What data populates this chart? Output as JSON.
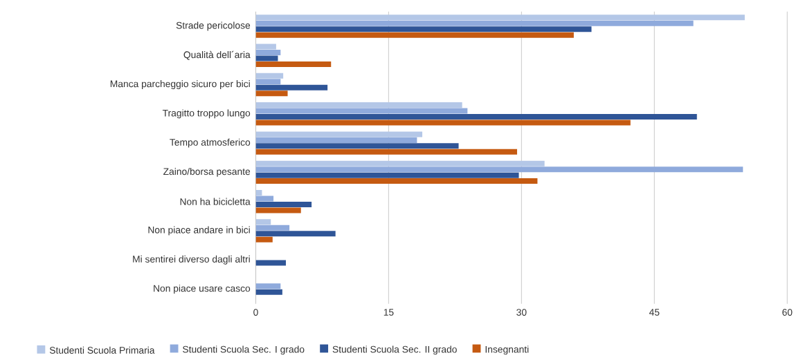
{
  "chart_data": {
    "type": "bar",
    "orientation": "horizontal",
    "categories": [
      "Strade pericolose",
      "Qualità dell´aria",
      "Manca parcheggio sicuro per bici",
      "Tragitto troppo lungo",
      "Tempo atmosferico",
      "Zaino/borsa pesante",
      "Non ha bicicletta",
      "Non piace andare in bici",
      "Mi sentirei diverso dagli altri",
      "Non piace usare casco"
    ],
    "series": [
      {
        "name": "Studenti Scuola Primaria",
        "color": "#b4c7e7",
        "values": [
          55.2,
          2.3,
          3.1,
          23.3,
          18.8,
          32.6,
          0.7,
          1.7,
          0,
          null
        ]
      },
      {
        "name": "Studenti Scuola Sec. I grado",
        "color": "#8faadc",
        "values": [
          49.4,
          2.8,
          2.8,
          23.9,
          18.2,
          55.0,
          2.0,
          3.8,
          0,
          2.8
        ]
      },
      {
        "name": "Studenti Scuola Sec. II grado",
        "color": "#2f5597",
        "values": [
          37.9,
          2.5,
          8.1,
          49.8,
          22.9,
          29.7,
          6.3,
          9.0,
          3.4,
          3.0
        ]
      },
      {
        "name": "Insegnanti",
        "color": "#c55a11",
        "values": [
          35.9,
          8.5,
          3.6,
          42.3,
          29.5,
          31.8,
          5.1,
          1.9,
          0,
          0
        ]
      }
    ],
    "xlim": [
      0,
      60
    ],
    "xticks": [
      0,
      15,
      30,
      45,
      60
    ],
    "grid": "x",
    "legend": "bottom"
  }
}
